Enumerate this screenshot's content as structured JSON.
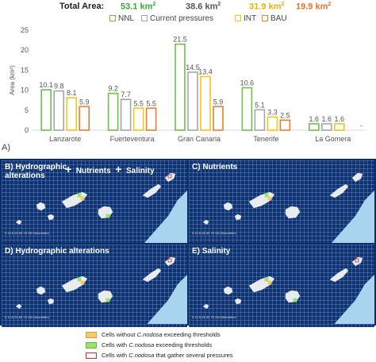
{
  "header": {
    "total_label": "Total Area:",
    "totals": [
      {
        "value": "53.1 km",
        "sup": "2",
        "color": "#3aaa35"
      },
      {
        "value": "38.6 km",
        "sup": "2",
        "color": "#555555"
      },
      {
        "value": "31.9 km",
        "sup": "2",
        "color": "#e8b400"
      },
      {
        "value": "19.9 km",
        "sup": "2",
        "color": "#e8702a"
      }
    ]
  },
  "panel_a_label": "A)",
  "chart_data": {
    "type": "bar",
    "categories": [
      "Lanzarote",
      "Fuerteventura",
      "Gran Canaria",
      "Tenerife",
      "La Gomera"
    ],
    "series": [
      {
        "name": "NNL",
        "color": "#6cc04a",
        "values": [
          10.1,
          9.2,
          21.5,
          10.6,
          1.6
        ]
      },
      {
        "name": "Current pressures",
        "color": "#a6a6a6",
        "values": [
          9.8,
          7.7,
          14.5,
          5.1,
          1.6
        ]
      },
      {
        "name": "INT",
        "color": "#f5c518",
        "values": [
          8.1,
          5.5,
          13.4,
          3.3,
          1.6
        ]
      },
      {
        "name": "BAU",
        "color": "#ed7d31",
        "values": [
          5.9,
          5.5,
          5.9,
          2.5,
          null
        ]
      }
    ],
    "trailing_label": "-",
    "ylabel": "Area (km²)",
    "ylim": [
      0,
      25
    ],
    "yticks": [
      0,
      5,
      10,
      15,
      20,
      25
    ],
    "grid": false,
    "legend_position": "top"
  },
  "maps": {
    "panels": [
      {
        "id": "B",
        "title": [
          "B) Hydrographic",
          "alterations"
        ],
        "plus1": "+",
        "nutrients": "Nutrients",
        "plus2": "+",
        "salinity": "Salinity"
      },
      {
        "id": "C",
        "title": [
          "C) Nutrients"
        ]
      },
      {
        "id": "D",
        "title": [
          "D) Hydrographic alterations"
        ]
      },
      {
        "id": "E",
        "title": [
          "E) Salinity"
        ]
      }
    ],
    "scale_text": "0  12.5  25   50   75   100 Kilometers"
  },
  "bottom_legend": [
    {
      "prefix": "Cells without ",
      "species": "C.nodosa",
      "suffix": " exceeding thresholds",
      "fill": "#f7c96b",
      "stroke": "#c9a04d"
    },
    {
      "prefix": "Cells with ",
      "species": "C.nodosa",
      "suffix": " exceeding thresholds",
      "fill": "#9de06a",
      "stroke": "#6cb33e"
    },
    {
      "prefix": "Cells with ",
      "species": "C.nodosa",
      "suffix": " that gather several pressures",
      "fill": "#ffffff",
      "stroke": "#d62c2c"
    }
  ]
}
